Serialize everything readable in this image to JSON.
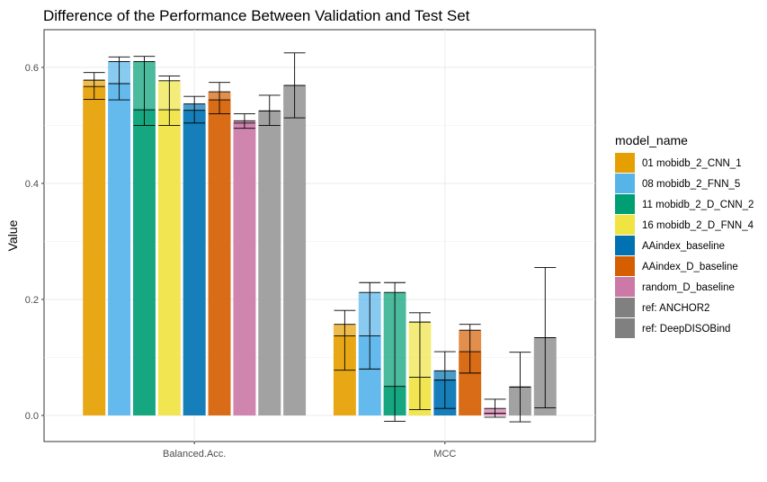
{
  "chart_data": {
    "type": "bar",
    "title": "Difference of the Performance Between Validation and Test Set",
    "xlabel": "",
    "ylabel": "Value",
    "ylim": [
      -0.045,
      0.665
    ],
    "yticks": [
      "0.0",
      "0.2",
      "0.4",
      "0.6"
    ],
    "ytick_values": [
      0.0,
      0.2,
      0.4,
      0.6
    ],
    "grid": true,
    "legend_title": "model_name",
    "legend_position": "right",
    "categories": [
      "Balanced.Acc.",
      "MCC"
    ],
    "series": [
      {
        "name": "01 mobidb_2_CNN_1",
        "color": "#E69F00",
        "values": [
          0.578,
          0.157
        ],
        "values_secondary": [
          0.567,
          0.137
        ],
        "err": [
          [
            0.545,
            0.591
          ],
          [
            0.078,
            0.181
          ]
        ]
      },
      {
        "name": "08 mobidb_2_FNN_5",
        "color": "#56B4E9",
        "values": [
          0.61,
          0.212
        ],
        "values_secondary": [
          0.572,
          0.137
        ],
        "err": [
          [
            0.544,
            0.618
          ],
          [
            0.08,
            0.229
          ]
        ]
      },
      {
        "name": "11 mobidb_2_D_CNN_2",
        "color": "#009E73",
        "values": [
          0.61,
          0.212
        ],
        "values_secondary": [
          0.527,
          0.05
        ],
        "err": [
          [
            0.5,
            0.619
          ],
          [
            -0.01,
            0.229
          ]
        ]
      },
      {
        "name": "16 mobidb_2_D_FNN_4",
        "color": "#F0E442",
        "values": [
          0.577,
          0.161
        ],
        "values_secondary": [
          0.527,
          0.066
        ],
        "err": [
          [
            0.5,
            0.585
          ],
          [
            0.01,
            0.177
          ]
        ]
      },
      {
        "name": "AAindex_baseline",
        "color": "#0072B2",
        "values": [
          0.537,
          0.077
        ],
        "values_secondary": [
          0.526,
          0.061
        ],
        "err": [
          [
            0.504,
            0.55
          ],
          [
            0.012,
            0.11
          ]
        ]
      },
      {
        "name": "AAindex_D_baseline",
        "color": "#D55E00",
        "values": [
          0.558,
          0.147
        ],
        "values_secondary": [
          0.544,
          0.11
        ],
        "err": [
          [
            0.52,
            0.574
          ],
          [
            0.073,
            0.157
          ]
        ]
      },
      {
        "name": "random_D_baseline",
        "color": "#CC79A7",
        "values": [
          0.508,
          0.012
        ],
        "values_secondary": [
          0.504,
          0.004
        ],
        "err": [
          [
            0.495,
            0.52
          ],
          [
            -0.003,
            0.028
          ]
        ]
      },
      {
        "name": "ref: ANCHOR2",
        "color": "#999999",
        "values": [
          0.525,
          0.049
        ],
        "values_secondary": [
          0.525,
          0.049
        ],
        "err": [
          [
            0.5,
            0.552
          ],
          [
            -0.011,
            0.109
          ]
        ]
      },
      {
        "name": "ref: DeepDISOBind",
        "color": "#999999",
        "values": [
          0.569,
          0.134
        ],
        "values_secondary": [
          0.569,
          0.134
        ],
        "err": [
          [
            0.513,
            0.625
          ],
          [
            0.013,
            0.255
          ]
        ]
      }
    ],
    "legend_colors": [
      "#E69F00",
      "#56B4E9",
      "#009E73",
      "#F0E442",
      "#0072B2",
      "#D55E00",
      "#CC79A7",
      "#808080",
      "#808080"
    ]
  }
}
